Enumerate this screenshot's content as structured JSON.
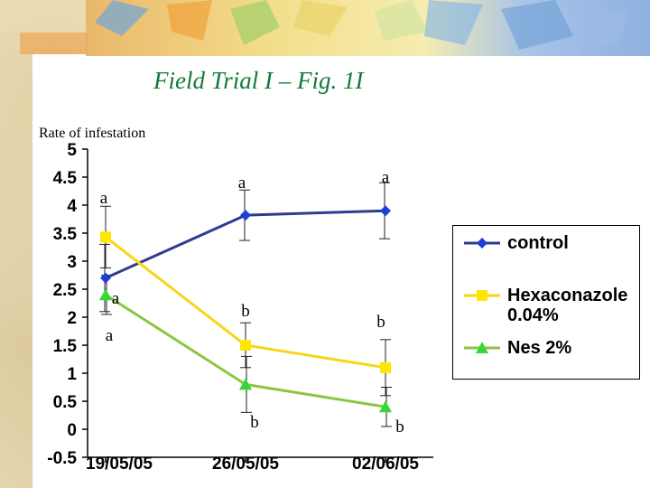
{
  "page": {
    "title": "Field Trial I – Fig. 1I"
  },
  "chart_data": {
    "type": "line",
    "ylabel": "Rate of infestation",
    "categories": [
      "19/05/05",
      "26/05/05",
      "02/06/05"
    ],
    "ylim": [
      -0.5,
      5
    ],
    "yticks": [
      "-0.5",
      "0",
      "0.5",
      "1",
      "1.5",
      "2",
      "2.5",
      "3",
      "3.5",
      "4",
      "4.5",
      "5"
    ],
    "grid": false,
    "legend_position": "right",
    "series": [
      {
        "name": "control",
        "color": "#2e3b8f",
        "marker": "diamond",
        "values": [
          2.7,
          3.82,
          3.9
        ],
        "error": [
          0.6,
          0.45,
          0.5
        ],
        "sig_labels": [
          "a",
          "a",
          "a"
        ]
      },
      {
        "name": "Hexaconazole 0.04%",
        "color": "#f7d517",
        "marker": "square",
        "values": [
          3.43,
          1.5,
          1.1
        ],
        "error": [
          0.55,
          0.4,
          0.5
        ],
        "sig_labels": [
          "a",
          "b",
          "b"
        ]
      },
      {
        "name": "Nes 2%",
        "color": "#8cc63f",
        "marker": "triangle",
        "values": [
          2.4,
          0.8,
          0.4
        ],
        "error": [
          0.35,
          0.5,
          0.35
        ],
        "sig_labels": [
          "a",
          "b",
          "b"
        ]
      }
    ]
  },
  "legend": {
    "items": [
      "control",
      "Hexaconazole\n0.04%",
      "Nes 2%"
    ]
  }
}
